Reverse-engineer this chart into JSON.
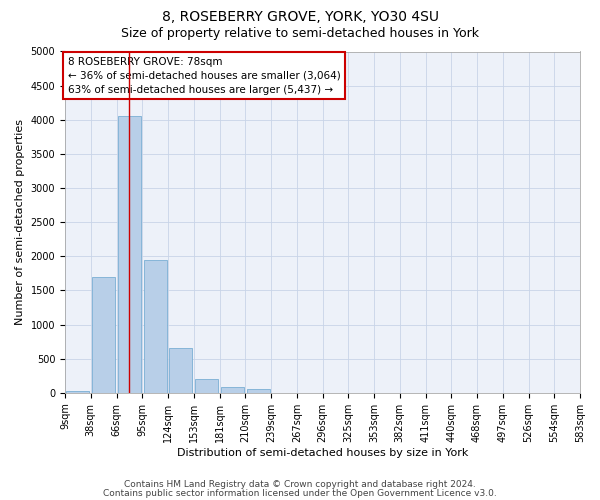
{
  "title": "8, ROSEBERRY GROVE, YORK, YO30 4SU",
  "subtitle": "Size of property relative to semi-detached houses in York",
  "xlabel": "Distribution of semi-detached houses by size in York",
  "ylabel": "Number of semi-detached properties",
  "footnote1": "Contains HM Land Registry data © Crown copyright and database right 2024.",
  "footnote2": "Contains public sector information licensed under the Open Government Licence v3.0.",
  "annotation_title": "8 ROSEBERRY GROVE: 78sqm",
  "annotation_line1": "← 36% of semi-detached houses are smaller (3,064)",
  "annotation_line2": "63% of semi-detached houses are larger (5,437) →",
  "property_size_bin": 2.5,
  "bar_heights": [
    30,
    1700,
    4050,
    1950,
    650,
    200,
    80,
    60,
    0,
    0,
    0,
    0,
    0,
    0,
    0,
    0,
    0,
    0,
    0,
    0
  ],
  "bin_labels": [
    "9sqm",
    "38sqm",
    "66sqm",
    "95sqm",
    "124sqm",
    "153sqm",
    "181sqm",
    "210sqm",
    "239sqm",
    "267sqm",
    "296sqm",
    "325sqm",
    "353sqm",
    "382sqm",
    "411sqm",
    "440sqm",
    "468sqm",
    "497sqm",
    "526sqm",
    "554sqm",
    "583sqm"
  ],
  "num_bins": 20,
  "bar_color": "#b8cfe8",
  "bar_edge_color": "#7aafd4",
  "vline_color": "#cc0000",
  "annotation_box_color": "#cc0000",
  "ylim": [
    0,
    5000
  ],
  "yticks": [
    0,
    500,
    1000,
    1500,
    2000,
    2500,
    3000,
    3500,
    4000,
    4500,
    5000
  ],
  "grid_color": "#c8d4e8",
  "bg_color": "#edf1f9",
  "title_fontsize": 10,
  "subtitle_fontsize": 9,
  "axis_label_fontsize": 8,
  "tick_fontsize": 7,
  "annotation_fontsize": 7.5,
  "footnote_fontsize": 6.5
}
